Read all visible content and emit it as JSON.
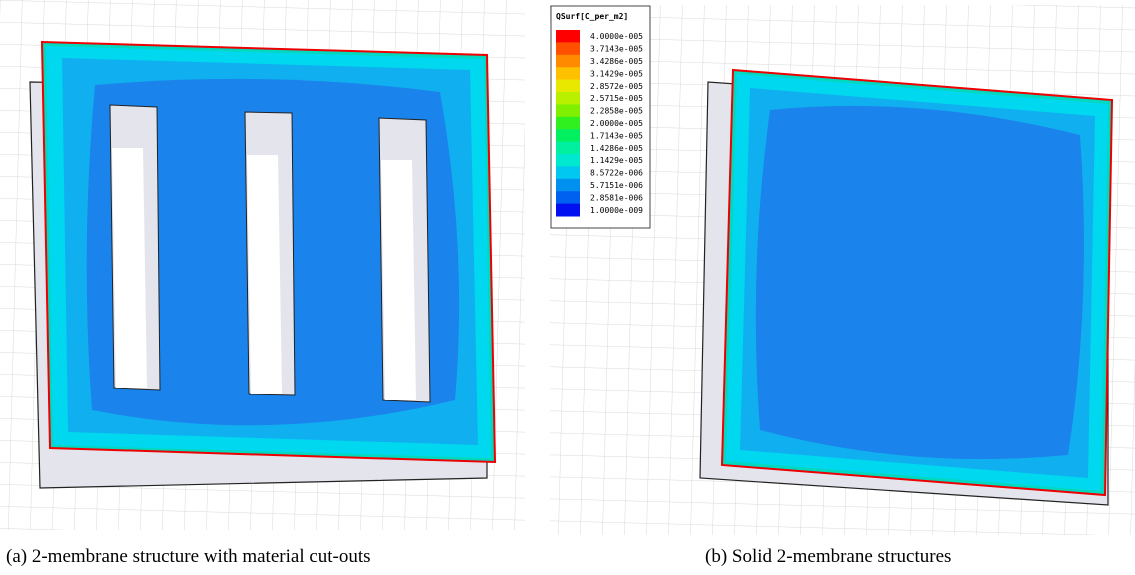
{
  "legend": {
    "title": "QSurf[C_per_m2]",
    "levels": [
      {
        "label": "4.0000e-005",
        "color": "#ff0000"
      },
      {
        "label": "3.7143e-005",
        "color": "#ff5000"
      },
      {
        "label": "3.4286e-005",
        "color": "#ff8a00"
      },
      {
        "label": "3.1429e-005",
        "color": "#ffc000"
      },
      {
        "label": "2.8572e-005",
        "color": "#e8e800"
      },
      {
        "label": "2.5715e-005",
        "color": "#b8f000"
      },
      {
        "label": "2.2858e-005",
        "color": "#80f000"
      },
      {
        "label": "2.0000e-005",
        "color": "#30f020"
      },
      {
        "label": "1.7143e-005",
        "color": "#00f060"
      },
      {
        "label": "1.4286e-005",
        "color": "#00f0a0"
      },
      {
        "label": "1.1429e-005",
        "color": "#00e8d0"
      },
      {
        "label": "8.5722e-006",
        "color": "#00c8f0"
      },
      {
        "label": "5.7151e-006",
        "color": "#0090f0"
      },
      {
        "label": "2.8581e-006",
        "color": "#0060f0"
      },
      {
        "label": "1.0000e-009",
        "color": "#0010f0"
      }
    ]
  },
  "panels": [
    {
      "caption": "(a) 2-membrane structure with material cut-outs"
    },
    {
      "caption": "(b) Solid 2-membrane structures"
    }
  ]
}
